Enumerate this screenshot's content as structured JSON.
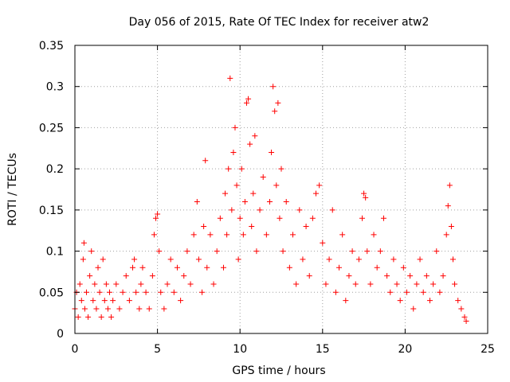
{
  "chart_data": {
    "type": "scatter",
    "title": "Day 056 of 2015, Rate Of TEC Index for receiver atw2",
    "xlabel": "GPS time / hours",
    "ylabel": "ROTI / TECUs",
    "xlim": [
      0,
      25
    ],
    "ylim": [
      0,
      0.35
    ],
    "x_ticks": [
      0,
      5,
      10,
      15,
      20,
      25
    ],
    "x_tick_labels": [
      "0",
      "5",
      "10",
      "15",
      "20",
      "25"
    ],
    "y_ticks": [
      0,
      0.05,
      0.1,
      0.15,
      0.2,
      0.25,
      0.3,
      0.35
    ],
    "y_tick_labels": [
      "0",
      "0.05",
      "0.1",
      "0.15",
      "0.2",
      "0.25",
      "0.3",
      "0.35"
    ],
    "grid": true,
    "marker": "+",
    "color": "#ff0000",
    "series": [
      {
        "points": [
          [
            0.0,
            0.03
          ],
          [
            0.1,
            0.05
          ],
          [
            0.2,
            0.02
          ],
          [
            0.3,
            0.06
          ],
          [
            0.4,
            0.04
          ],
          [
            0.5,
            0.09
          ],
          [
            0.55,
            0.11
          ],
          [
            0.6,
            0.03
          ],
          [
            0.7,
            0.05
          ],
          [
            0.8,
            0.02
          ],
          [
            0.9,
            0.07
          ],
          [
            1.0,
            0.1
          ],
          [
            1.1,
            0.04
          ],
          [
            1.2,
            0.06
          ],
          [
            1.3,
            0.03
          ],
          [
            1.4,
            0.08
          ],
          [
            1.5,
            0.05
          ],
          [
            1.6,
            0.02
          ],
          [
            1.7,
            0.09
          ],
          [
            1.8,
            0.04
          ],
          [
            1.9,
            0.06
          ],
          [
            2.0,
            0.03
          ],
          [
            2.1,
            0.05
          ],
          [
            2.2,
            0.02
          ],
          [
            2.3,
            0.04
          ],
          [
            2.5,
            0.06
          ],
          [
            2.7,
            0.03
          ],
          [
            2.9,
            0.05
          ],
          [
            3.1,
            0.07
          ],
          [
            3.3,
            0.04
          ],
          [
            3.5,
            0.08
          ],
          [
            3.6,
            0.09
          ],
          [
            3.7,
            0.05
          ],
          [
            3.9,
            0.03
          ],
          [
            4.0,
            0.06
          ],
          [
            4.1,
            0.08
          ],
          [
            4.3,
            0.05
          ],
          [
            4.5,
            0.03
          ],
          [
            4.7,
            0.07
          ],
          [
            4.8,
            0.12
          ],
          [
            4.9,
            0.14
          ],
          [
            5.0,
            0.145
          ],
          [
            5.1,
            0.1
          ],
          [
            5.2,
            0.05
          ],
          [
            5.4,
            0.03
          ],
          [
            5.6,
            0.06
          ],
          [
            5.8,
            0.09
          ],
          [
            6.0,
            0.05
          ],
          [
            6.2,
            0.08
          ],
          [
            6.4,
            0.04
          ],
          [
            6.6,
            0.07
          ],
          [
            6.8,
            0.1
          ],
          [
            7.0,
            0.06
          ],
          [
            7.2,
            0.12
          ],
          [
            7.4,
            0.16
          ],
          [
            7.5,
            0.09
          ],
          [
            7.7,
            0.05
          ],
          [
            7.8,
            0.13
          ],
          [
            7.9,
            0.21
          ],
          [
            8.0,
            0.08
          ],
          [
            8.2,
            0.12
          ],
          [
            8.4,
            0.06
          ],
          [
            8.6,
            0.1
          ],
          [
            8.8,
            0.14
          ],
          [
            9.0,
            0.08
          ],
          [
            9.1,
            0.17
          ],
          [
            9.2,
            0.12
          ],
          [
            9.3,
            0.2
          ],
          [
            9.4,
            0.31
          ],
          [
            9.5,
            0.15
          ],
          [
            9.6,
            0.22
          ],
          [
            9.7,
            0.25
          ],
          [
            9.8,
            0.18
          ],
          [
            9.9,
            0.09
          ],
          [
            10.0,
            0.14
          ],
          [
            10.1,
            0.2
          ],
          [
            10.2,
            0.12
          ],
          [
            10.3,
            0.16
          ],
          [
            10.4,
            0.28
          ],
          [
            10.5,
            0.285
          ],
          [
            10.6,
            0.23
          ],
          [
            10.7,
            0.13
          ],
          [
            10.8,
            0.17
          ],
          [
            10.9,
            0.24
          ],
          [
            11.0,
            0.1
          ],
          [
            11.2,
            0.15
          ],
          [
            11.4,
            0.19
          ],
          [
            11.6,
            0.12
          ],
          [
            11.8,
            0.16
          ],
          [
            11.9,
            0.22
          ],
          [
            12.0,
            0.3
          ],
          [
            12.1,
            0.27
          ],
          [
            12.2,
            0.18
          ],
          [
            12.3,
            0.28
          ],
          [
            12.4,
            0.14
          ],
          [
            12.5,
            0.2
          ],
          [
            12.6,
            0.1
          ],
          [
            12.8,
            0.16
          ],
          [
            13.0,
            0.08
          ],
          [
            13.2,
            0.12
          ],
          [
            13.4,
            0.06
          ],
          [
            13.6,
            0.15
          ],
          [
            13.8,
            0.09
          ],
          [
            14.0,
            0.13
          ],
          [
            14.2,
            0.07
          ],
          [
            14.4,
            0.14
          ],
          [
            14.6,
            0.17
          ],
          [
            14.8,
            0.18
          ],
          [
            15.0,
            0.11
          ],
          [
            15.2,
            0.06
          ],
          [
            15.4,
            0.09
          ],
          [
            15.6,
            0.15
          ],
          [
            15.8,
            0.05
          ],
          [
            16.0,
            0.08
          ],
          [
            16.2,
            0.12
          ],
          [
            16.4,
            0.04
          ],
          [
            16.6,
            0.07
          ],
          [
            16.8,
            0.1
          ],
          [
            17.0,
            0.06
          ],
          [
            17.2,
            0.09
          ],
          [
            17.4,
            0.14
          ],
          [
            17.5,
            0.17
          ],
          [
            17.6,
            0.165
          ],
          [
            17.7,
            0.1
          ],
          [
            17.9,
            0.06
          ],
          [
            18.1,
            0.12
          ],
          [
            18.3,
            0.08
          ],
          [
            18.5,
            0.1
          ],
          [
            18.7,
            0.14
          ],
          [
            18.9,
            0.07
          ],
          [
            19.1,
            0.05
          ],
          [
            19.3,
            0.09
          ],
          [
            19.5,
            0.06
          ],
          [
            19.7,
            0.04
          ],
          [
            19.9,
            0.08
          ],
          [
            20.1,
            0.05
          ],
          [
            20.3,
            0.07
          ],
          [
            20.5,
            0.03
          ],
          [
            20.7,
            0.06
          ],
          [
            20.9,
            0.09
          ],
          [
            21.1,
            0.05
          ],
          [
            21.3,
            0.07
          ],
          [
            21.5,
            0.04
          ],
          [
            21.7,
            0.06
          ],
          [
            21.9,
            0.1
          ],
          [
            22.1,
            0.05
          ],
          [
            22.3,
            0.07
          ],
          [
            22.5,
            0.12
          ],
          [
            22.6,
            0.155
          ],
          [
            22.7,
            0.18
          ],
          [
            22.8,
            0.13
          ],
          [
            22.9,
            0.09
          ],
          [
            23.0,
            0.06
          ],
          [
            23.2,
            0.04
          ],
          [
            23.4,
            0.03
          ],
          [
            23.6,
            0.02
          ],
          [
            23.7,
            0.015
          ]
        ]
      }
    ]
  }
}
